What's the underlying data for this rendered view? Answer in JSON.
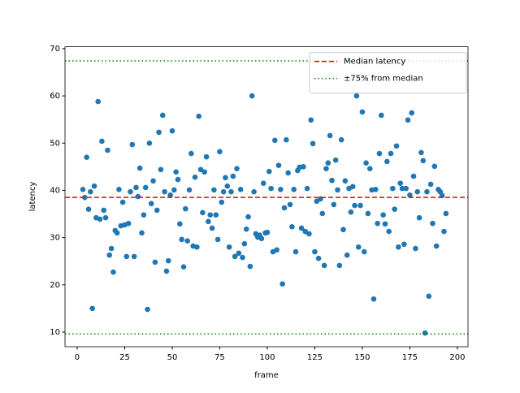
{
  "chart_data": {
    "type": "scatter",
    "x_label": "frame",
    "y_label": "latency",
    "xlim": [
      -6.4,
      205.6
    ],
    "ylim": [
      6.9,
      70.4
    ],
    "xticks": [
      0,
      25,
      50,
      75,
      100,
      125,
      150,
      175,
      200
    ],
    "yticks": [
      10,
      20,
      30,
      40,
      50,
      60,
      70
    ],
    "legend_position": "upper right",
    "series": [
      {
        "name": "latency",
        "color": "#1f77b4",
        "x": [
          3,
          4,
          5,
          6,
          7,
          8,
          9,
          10,
          11,
          12,
          13,
          14,
          15,
          16,
          17,
          18,
          19,
          20,
          21,
          22,
          23,
          24,
          25,
          26,
          27,
          28,
          29,
          30,
          31,
          32,
          33,
          34,
          35,
          36,
          37,
          38,
          39,
          40,
          41,
          42,
          43,
          44,
          45,
          46,
          47,
          48,
          49,
          50,
          51,
          52,
          53,
          54,
          55,
          56,
          57,
          58,
          59,
          60,
          61,
          62,
          63,
          64,
          65,
          66,
          67,
          68,
          69,
          70,
          71,
          72,
          73,
          74,
          75,
          76,
          77,
          78,
          79,
          80,
          81,
          82,
          83,
          84,
          85,
          86,
          87,
          88,
          89,
          90,
          91,
          92,
          93,
          94,
          95,
          96,
          97,
          98,
          99,
          100,
          101,
          102,
          103,
          104,
          105,
          106,
          107,
          108,
          109,
          110,
          111,
          112,
          113,
          114,
          115,
          116,
          117,
          118,
          119,
          120,
          121,
          122,
          123,
          124,
          125,
          126,
          127,
          128,
          129,
          130,
          131,
          132,
          133,
          134,
          135,
          136,
          137,
          138,
          139,
          140,
          141,
          142,
          143,
          144,
          145,
          146,
          147,
          148,
          149,
          150,
          151,
          152,
          153,
          154,
          155,
          156,
          157,
          158,
          159,
          160,
          161,
          162,
          163,
          164,
          165,
          166,
          167,
          168,
          169,
          170,
          171,
          172,
          173,
          174,
          175,
          176,
          177,
          178,
          179,
          180,
          181,
          182,
          183,
          184,
          185,
          186,
          187,
          188,
          189,
          190,
          191,
          192,
          193,
          194
        ],
        "y": [
          40.2,
          38.5,
          47,
          36,
          39.7,
          15,
          40.9,
          34.2,
          58.8,
          33.9,
          50.4,
          35.8,
          34.2,
          48.5,
          26.3,
          27.7,
          22.7,
          31.5,
          31,
          40.2,
          32.5,
          37.5,
          32.7,
          26,
          33,
          39.7,
          49.7,
          26,
          40.6,
          38.7,
          44.7,
          31,
          34.8,
          40.6,
          14.8,
          50,
          37.2,
          42,
          24.8,
          35.8,
          52.3,
          44.4,
          55.9,
          39.7,
          22.9,
          25.1,
          39,
          52.6,
          40.1,
          43.9,
          42.3,
          32.9,
          29.6,
          23.8,
          36.1,
          29.3,
          40.1,
          47.8,
          28.2,
          42.8,
          28,
          55.7,
          44.4,
          35.3,
          43.9,
          47.1,
          33.4,
          34.8,
          32,
          40.1,
          34.8,
          29.6,
          48.2,
          37.5,
          39.7,
          42.7,
          40.9,
          28,
          39.7,
          43,
          26,
          44.6,
          26.7,
          40.2,
          25.8,
          28.7,
          31.8,
          34.4,
          23.9,
          60,
          39.7,
          30.8,
          30.1,
          30.5,
          29.8,
          41.5,
          31,
          31.1,
          44,
          40.4,
          27,
          50.6,
          27.4,
          45.3,
          40.2,
          20.2,
          36.3,
          50.7,
          43.7,
          37,
          32.3,
          40.2,
          27,
          44.2,
          44.9,
          32,
          45,
          31.3,
          40.4,
          30.8,
          54.9,
          49.9,
          27,
          37.7,
          25.6,
          38.2,
          35.1,
          24.1,
          44.6,
          45.8,
          51.6,
          42.1,
          37,
          46.4,
          40.1,
          24.1,
          50.7,
          31.7,
          42,
          26.3,
          40.4,
          35.4,
          40.8,
          36.8,
          60,
          28,
          36.8,
          56.6,
          27,
          45.8,
          35.1,
          44.6,
          40.1,
          17,
          40.2,
          33,
          47.8,
          55.9,
          34.8,
          32.9,
          46.1,
          31.3,
          47.8,
          40.4,
          36,
          49.4,
          28,
          41.5,
          40.4,
          28.6,
          40.4,
          54.9,
          39,
          56.4,
          43,
          27.7,
          39.7,
          34.2,
          48,
          46.3,
          9.8,
          39.7,
          17.6,
          41.3,
          33,
          45.1,
          28.2,
          40.2,
          39.7,
          38.9,
          31.3,
          35.1
        ]
      }
    ],
    "lines": [
      {
        "name": "Median latency",
        "value": 38.5,
        "color": "#ff0000",
        "style": "dashed"
      },
      {
        "name": "±75% from median",
        "value": 67.4,
        "color": "#008000",
        "style": "dotted"
      },
      {
        "name": "±75% from median",
        "value": 9.6,
        "color": "#008000",
        "style": "dotted"
      }
    ]
  }
}
